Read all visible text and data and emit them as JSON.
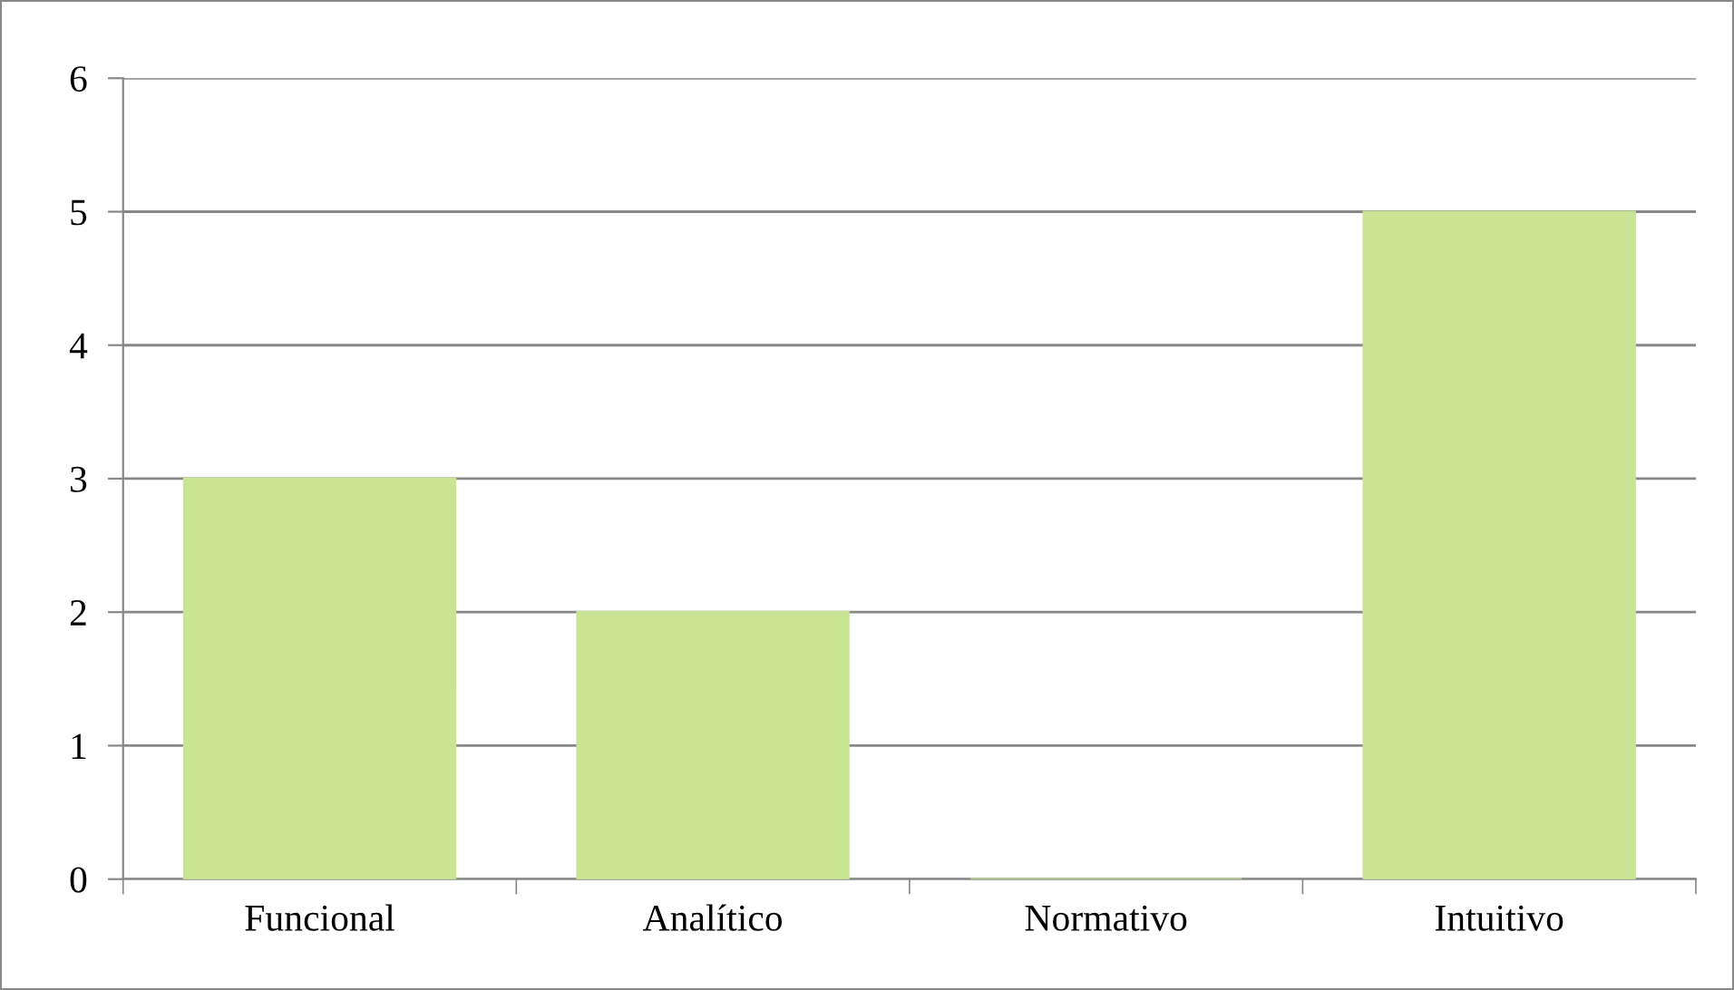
{
  "chart_data": {
    "type": "bar",
    "categories": [
      "Funcional",
      "Analítico",
      "Normativo",
      "Intuitivo"
    ],
    "values": [
      3,
      2,
      0,
      5
    ],
    "color": "#c8e494",
    "ylim": [
      0,
      6
    ],
    "yticks": [
      0,
      1,
      2,
      3,
      4,
      5,
      6
    ],
    "grid": "y",
    "legend": false
  }
}
